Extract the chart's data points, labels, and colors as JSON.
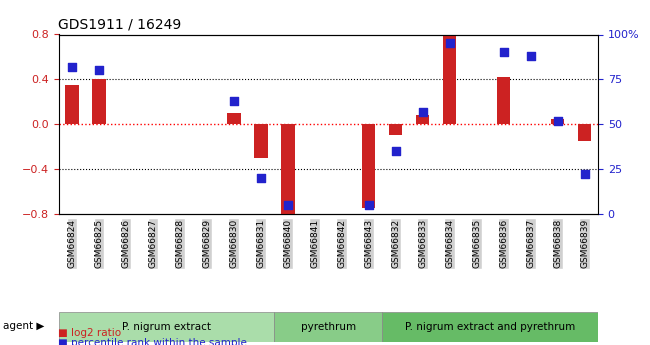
{
  "title": "GDS1911 / 16249",
  "samples": [
    "GSM66824",
    "GSM66825",
    "GSM66826",
    "GSM66827",
    "GSM66828",
    "GSM66829",
    "GSM66830",
    "GSM66831",
    "GSM66840",
    "GSM66841",
    "GSM66842",
    "GSM66843",
    "GSM66832",
    "GSM66833",
    "GSM66834",
    "GSM66835",
    "GSM66836",
    "GSM66837",
    "GSM66838",
    "GSM66839"
  ],
  "log2_ratio": [
    0.35,
    0.4,
    0.0,
    0.0,
    0.0,
    0.0,
    0.1,
    -0.3,
    -0.82,
    0.0,
    0.0,
    -0.75,
    -0.1,
    0.08,
    0.8,
    0.0,
    0.42,
    0.0,
    0.05,
    -0.15
  ],
  "percentile_rank": [
    82,
    80,
    null,
    null,
    null,
    null,
    63,
    20,
    5,
    null,
    null,
    5,
    35,
    57,
    95,
    null,
    90,
    88,
    52,
    22
  ],
  "groups": [
    {
      "label": "P. nigrum extract",
      "start": 0,
      "end": 8,
      "color": "#aaddaa"
    },
    {
      "label": "pyrethrum",
      "start": 8,
      "end": 12,
      "color": "#88cc88"
    },
    {
      "label": "P. nigrum extract and pyrethrum",
      "start": 12,
      "end": 20,
      "color": "#66bb66"
    }
  ],
  "ylim_left": [
    -0.8,
    0.8
  ],
  "ylim_right": [
    0,
    100
  ],
  "bar_color": "#cc2222",
  "dot_color": "#2222cc",
  "bar_width": 0.5,
  "dot_size": 30,
  "legend_bar_color": "#cc2222",
  "legend_dot_color": "#2222cc"
}
